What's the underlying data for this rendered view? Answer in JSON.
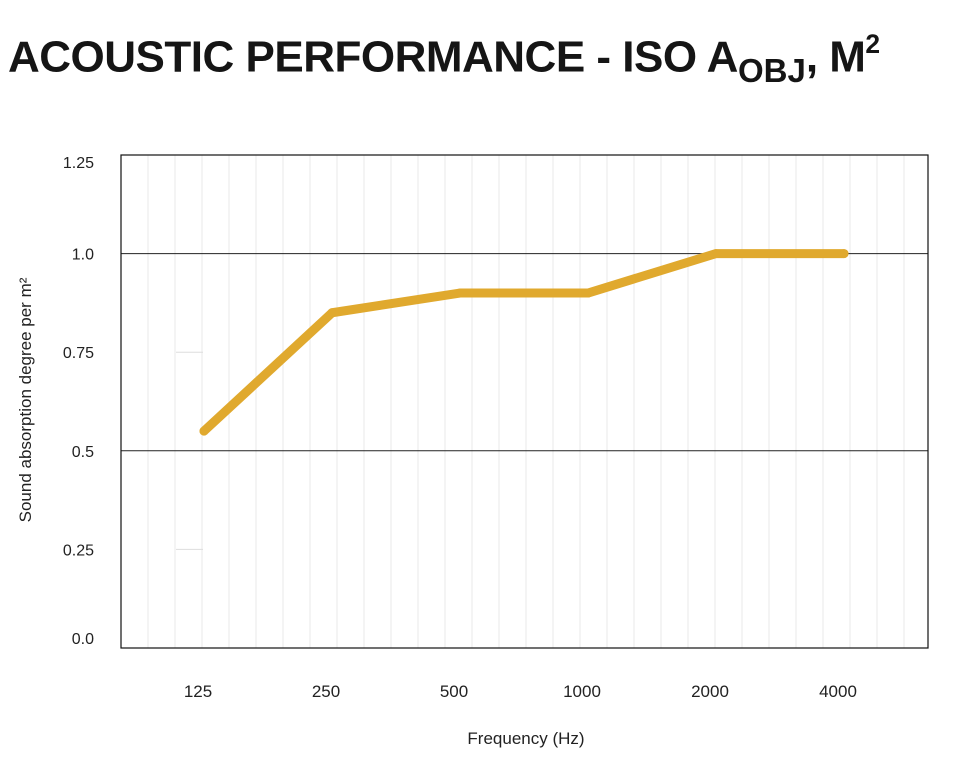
{
  "title": {
    "main": "ACOUSTIC PERFORMANCE - ISO A",
    "subscript": "OBJ",
    "trailer": ", M",
    "superscript": "2"
  },
  "chart_data": {
    "type": "line",
    "categories": [
      "125",
      "250",
      "500",
      "1000",
      "2000",
      "4000"
    ],
    "series": [
      {
        "name": "Sound absorption",
        "values": [
          0.55,
          0.85,
          0.9,
          0.9,
          1.0,
          1.0
        ],
        "color": "#E0A92E"
      }
    ],
    "xlabel": "Frequency (Hz)",
    "ylabel": "Sound absorption degree per m²",
    "yticks": [
      {
        "value": 1.25,
        "label": "1.25"
      },
      {
        "value": 1.0,
        "label": "1.0"
      },
      {
        "value": 0.75,
        "label": "0.75"
      },
      {
        "value": 0.5,
        "label": "0.5"
      },
      {
        "value": 0.25,
        "label": "0.25"
      },
      {
        "value": 0.0,
        "label": "0.0"
      }
    ],
    "major_gridlines": [
      1.0,
      0.5
    ],
    "ylim": [
      0.0,
      1.25
    ],
    "grid": true,
    "legend": "none"
  },
  "colors": {
    "line": "#E0A92E",
    "axis": "#111111",
    "major_grid": "#222222",
    "minor_grid": "#e9e9e9"
  }
}
